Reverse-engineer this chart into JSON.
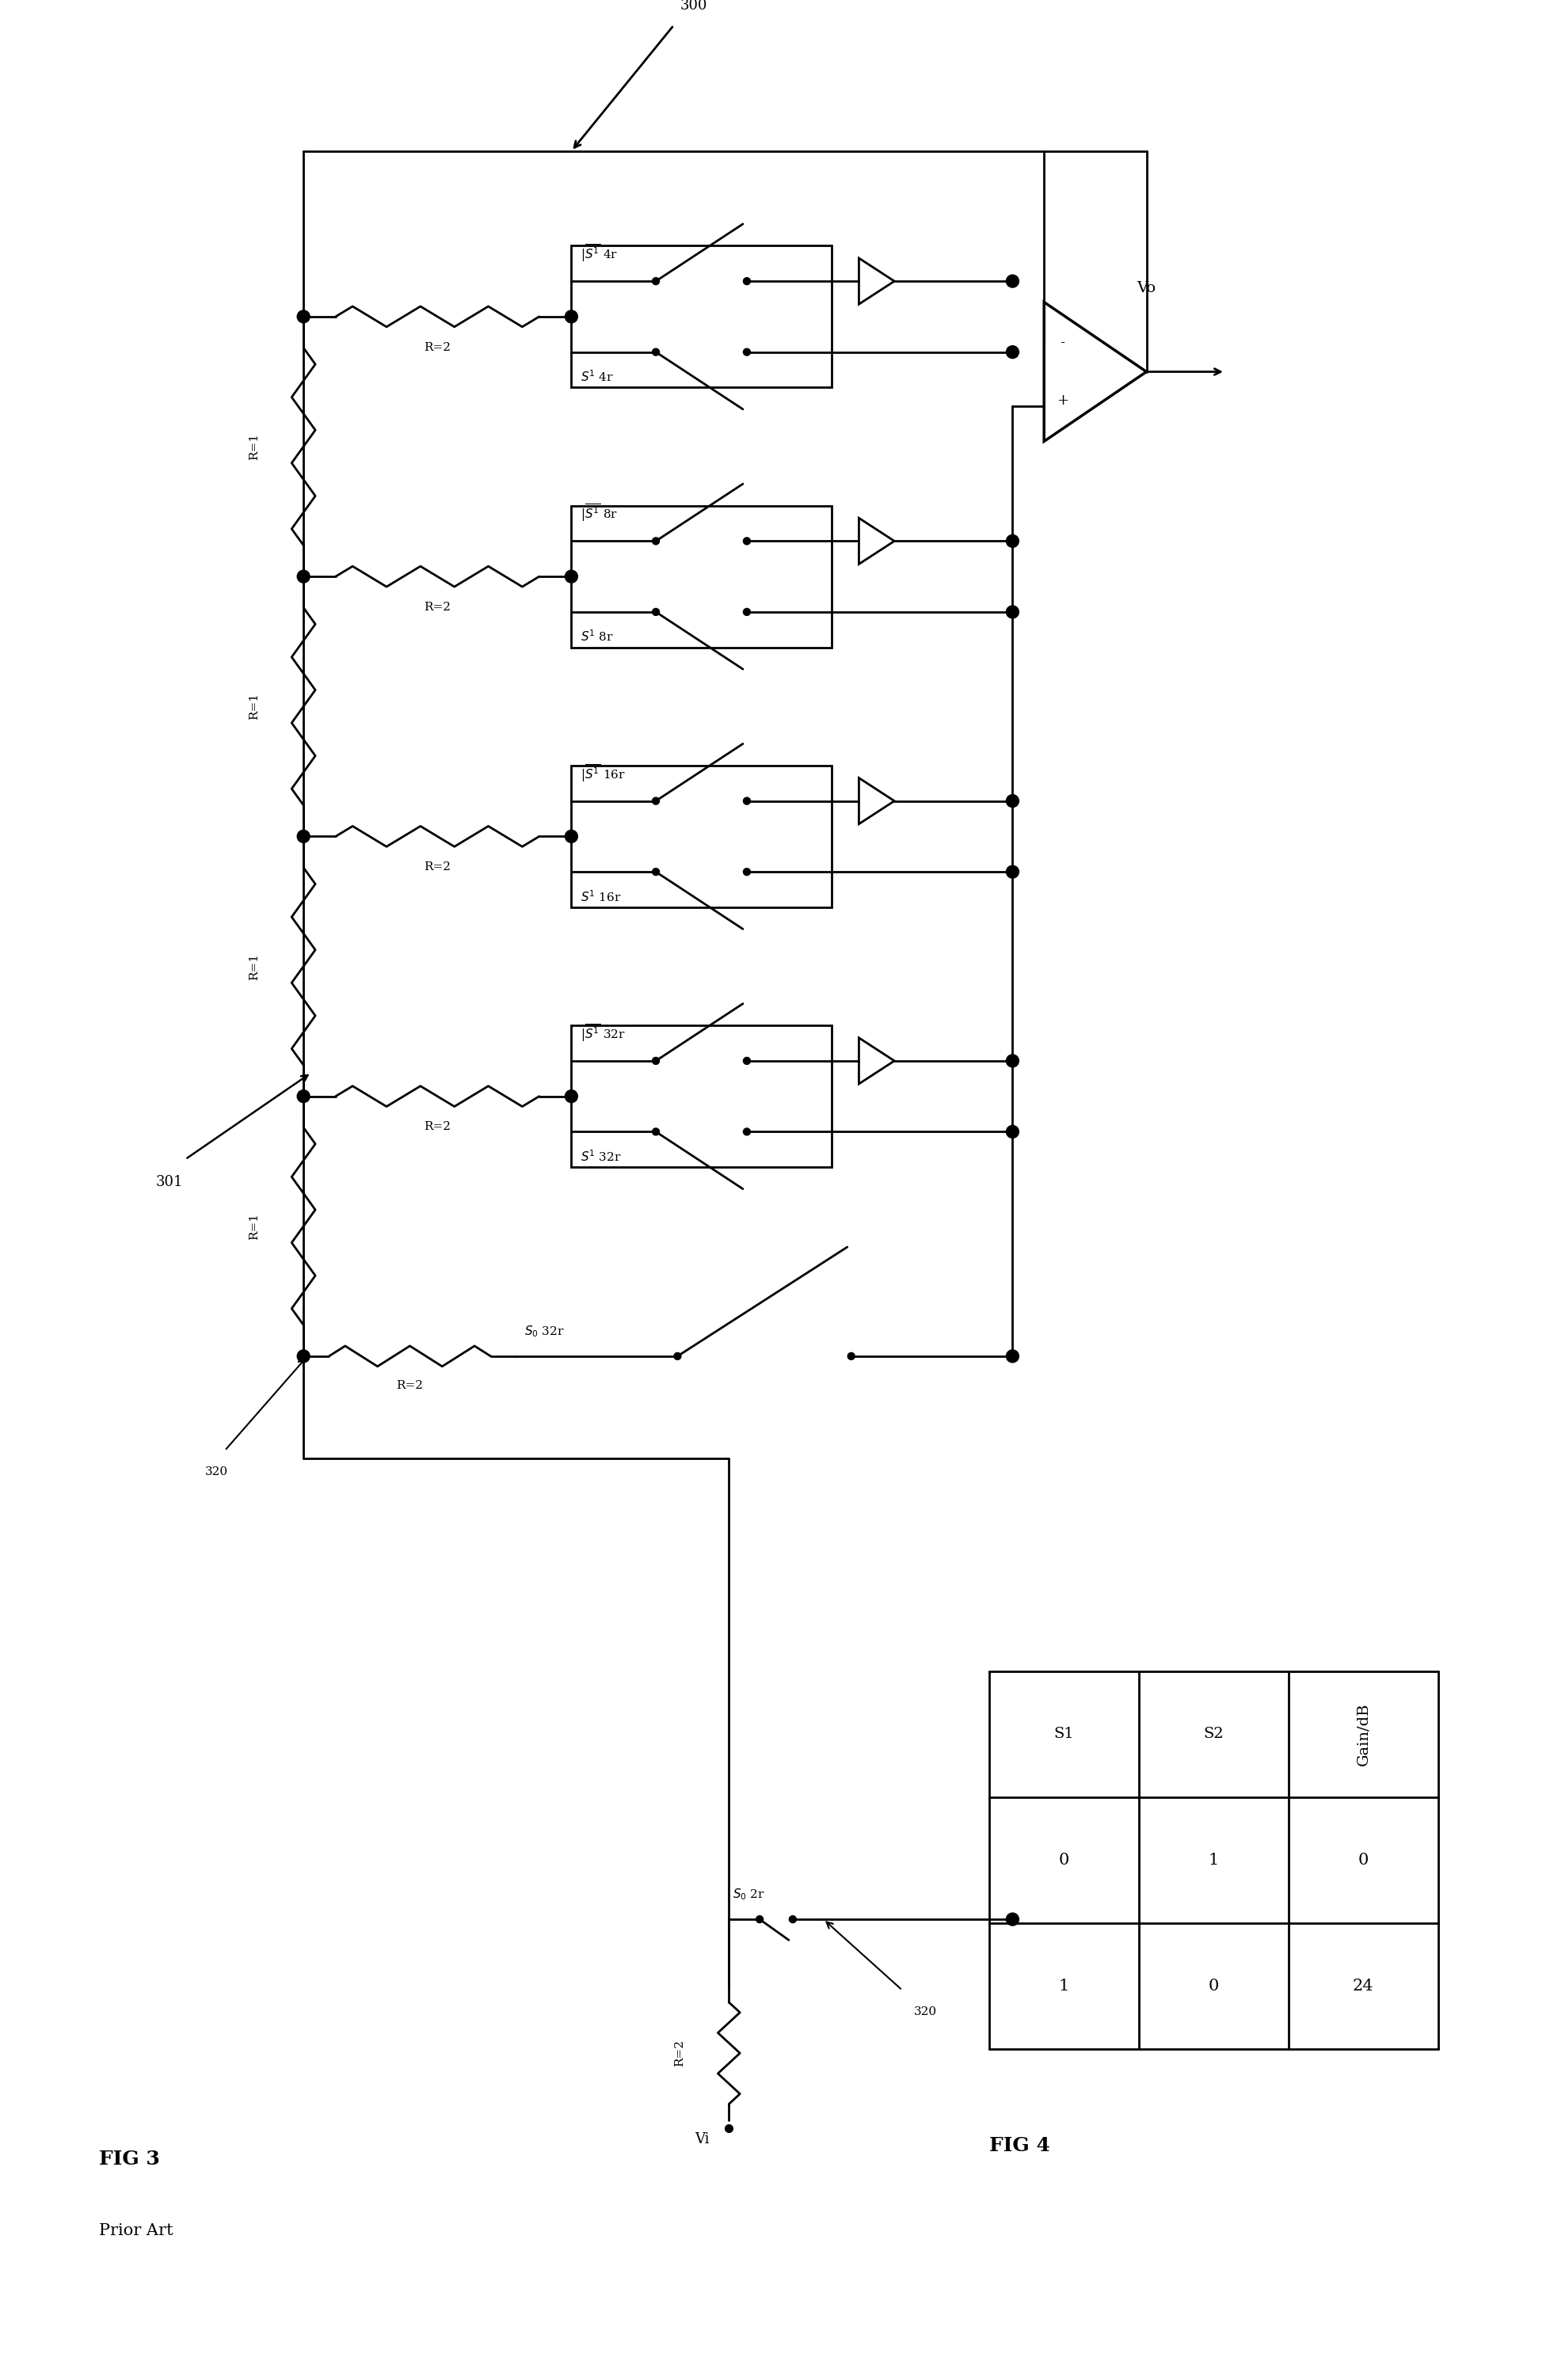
{
  "title_fig3": "FIG 3",
  "subtitle_fig3": "Prior Art",
  "title_fig4": "FIG 4",
  "label_300": "300",
  "label_301": "301",
  "label_Vo": "Vo",
  "label_Vi": "Vi",
  "table_headers": [
    "S1",
    "S2",
    "Gain/dB"
  ],
  "table_rows": [
    [
      "0",
      "1",
      "0"
    ],
    [
      "1",
      "0",
      "24"
    ]
  ],
  "bg_color": "#ffffff",
  "line_color": "#000000",
  "lw": 2.0,
  "fs_label": 13,
  "fs_small": 11,
  "fs_fig": 18
}
